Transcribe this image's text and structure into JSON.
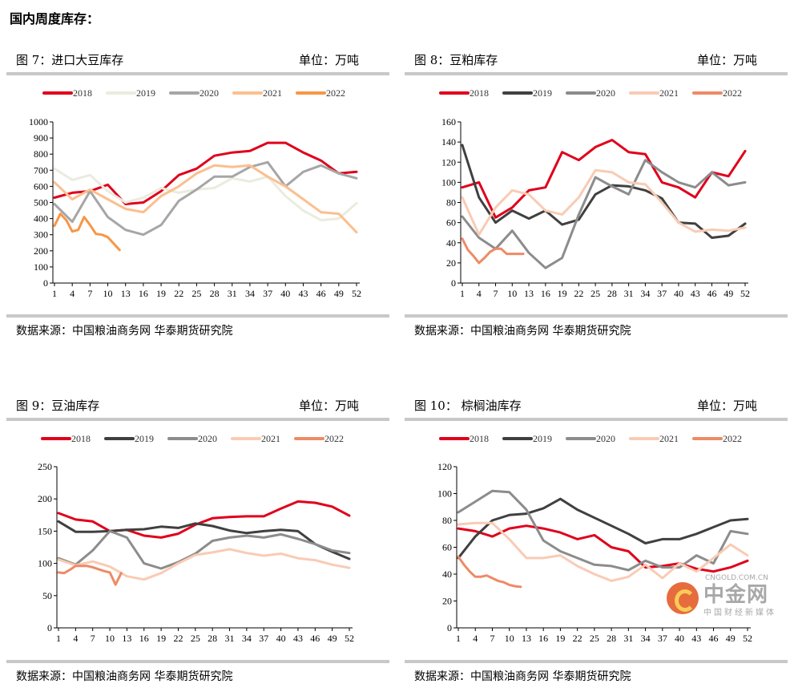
{
  "page_title": "国内周度库存：",
  "watermark": {
    "name": "中金网",
    "url": "CNGOLD.COM.CN",
    "sub": "中国财经新媒体"
  },
  "panels": [
    {
      "title": "图 7：进口大豆库存",
      "unit": "单位：万吨",
      "source": "数据来源：中国粮油商务网  华泰期货研究院"
    },
    {
      "title": "图 8：豆粕库存",
      "unit": "单位：万吨",
      "source": "数据来源：中国粮油商务网  华泰期货研究院"
    },
    {
      "title": "图 9：豆油库存",
      "unit": "单位：万吨",
      "source": "数据来源：中国粮油商务网  华泰期货研究院"
    },
    {
      "title": "图 10：    棕榈油库存",
      "unit": "单位：万吨",
      "source": "数据来源：中国粮油商务网  华泰期货研究院"
    }
  ],
  "chart_data": [
    {
      "type": "line",
      "title": "进口大豆库存",
      "unit": "万吨",
      "ylim": [
        0,
        1000
      ],
      "yticks": [
        0,
        100,
        200,
        300,
        400,
        500,
        600,
        700,
        800,
        900,
        1000
      ],
      "xlim": [
        1,
        52
      ],
      "xticks": [
        1,
        4,
        7,
        10,
        13,
        16,
        19,
        22,
        25,
        28,
        31,
        34,
        37,
        40,
        43,
        46,
        49,
        52
      ],
      "grid": false,
      "legend": "top",
      "series": [
        {
          "name": "2018",
          "color": "#e0001b",
          "x": [
            1,
            4,
            7,
            10,
            13,
            16,
            19,
            22,
            25,
            28,
            31,
            34,
            37,
            40,
            43,
            46,
            49,
            52
          ],
          "values": [
            530,
            560,
            570,
            610,
            490,
            500,
            570,
            670,
            710,
            790,
            810,
            820,
            870,
            870,
            810,
            760,
            680,
            690
          ]
        },
        {
          "name": "2019",
          "color": "#ebebdf",
          "x": [
            1,
            4,
            7,
            10,
            13,
            16,
            19,
            22,
            25,
            28,
            31,
            34,
            37,
            40,
            43,
            46,
            49,
            52
          ],
          "values": [
            710,
            640,
            670,
            570,
            500,
            530,
            590,
            560,
            580,
            590,
            650,
            630,
            660,
            540,
            450,
            390,
            400,
            495
          ]
        },
        {
          "name": "2020",
          "color": "#a6a6a6",
          "x": [
            1,
            4,
            7,
            10,
            13,
            16,
            19,
            22,
            25,
            28,
            31,
            34,
            37,
            40,
            43,
            46,
            49,
            52
          ],
          "values": [
            490,
            380,
            570,
            410,
            330,
            300,
            360,
            510,
            580,
            660,
            660,
            720,
            750,
            600,
            690,
            730,
            680,
            650
          ]
        },
        {
          "name": "2021",
          "color": "#fbbf8f",
          "x": [
            1,
            4,
            7,
            10,
            13,
            16,
            19,
            22,
            25,
            28,
            31,
            34,
            37,
            40,
            43,
            46,
            49,
            52
          ],
          "values": [
            625,
            520,
            580,
            520,
            460,
            440,
            540,
            600,
            680,
            730,
            720,
            730,
            660,
            600,
            520,
            440,
            430,
            315
          ]
        },
        {
          "name": "2022",
          "color": "#f79646",
          "x": [
            1,
            2,
            3,
            4,
            5,
            6,
            7,
            8,
            9,
            10,
            11,
            12
          ],
          "values": [
            355,
            430,
            390,
            320,
            330,
            410,
            360,
            305,
            300,
            285,
            245,
            205
          ]
        }
      ]
    },
    {
      "type": "line",
      "title": "豆粕库存",
      "unit": "万吨",
      "ylim": [
        0,
        160
      ],
      "yticks": [
        0,
        20,
        40,
        60,
        80,
        100,
        120,
        140,
        160
      ],
      "xlim": [
        1,
        52
      ],
      "xticks": [
        1,
        4,
        7,
        10,
        13,
        16,
        19,
        22,
        25,
        28,
        31,
        34,
        37,
        40,
        43,
        46,
        49,
        52
      ],
      "grid": false,
      "legend": "top",
      "series": [
        {
          "name": "2018",
          "color": "#e0001b",
          "x": [
            1,
            4,
            7,
            10,
            13,
            16,
            19,
            22,
            25,
            28,
            31,
            34,
            37,
            40,
            43,
            46,
            49,
            52
          ],
          "values": [
            95,
            100,
            65,
            75,
            92,
            95,
            130,
            122,
            135,
            142,
            130,
            128,
            100,
            95,
            85,
            110,
            106,
            131
          ]
        },
        {
          "name": "2019",
          "color": "#404040",
          "x": [
            1,
            4,
            7,
            10,
            13,
            16,
            19,
            22,
            25,
            28,
            31,
            34,
            37,
            40,
            43,
            46,
            49,
            52
          ],
          "values": [
            137,
            85,
            60,
            72,
            64,
            72,
            58,
            63,
            88,
            97,
            96,
            92,
            84,
            60,
            59,
            45,
            47,
            59
          ]
        },
        {
          "name": "2020",
          "color": "#8c8c8c",
          "x": [
            1,
            4,
            7,
            10,
            13,
            16,
            19,
            22,
            25,
            28,
            31,
            34,
            37,
            40,
            43,
            46,
            49,
            52
          ],
          "values": [
            66,
            45,
            34,
            52,
            30,
            15,
            25,
            68,
            105,
            96,
            88,
            122,
            110,
            100,
            95,
            110,
            97,
            100
          ]
        },
        {
          "name": "2021",
          "color": "#f9cbb4",
          "x": [
            1,
            4,
            7,
            10,
            13,
            16,
            19,
            22,
            25,
            28,
            31,
            34,
            37,
            40,
            43,
            46,
            49,
            52
          ],
          "values": [
            85,
            48,
            75,
            92,
            88,
            72,
            68,
            85,
            112,
            110,
            100,
            98,
            80,
            60,
            51,
            53,
            52,
            55
          ]
        },
        {
          "name": "2022",
          "color": "#ee8a66",
          "x": [
            1,
            2,
            3,
            4,
            5,
            6,
            7,
            8,
            9,
            10,
            11,
            12
          ],
          "values": [
            44,
            33,
            27,
            20,
            25,
            31,
            34,
            34,
            29,
            29,
            29,
            29
          ]
        }
      ]
    },
    {
      "type": "line",
      "title": "豆油库存",
      "unit": "万吨",
      "ylim": [
        0,
        250
      ],
      "yticks": [
        0,
        50,
        100,
        150,
        200,
        250
      ],
      "xlim": [
        1,
        52
      ],
      "xticks": [
        1,
        4,
        7,
        10,
        13,
        16,
        19,
        22,
        25,
        28,
        31,
        34,
        37,
        40,
        43,
        46,
        49,
        52
      ],
      "grid": false,
      "legend": "top",
      "series": [
        {
          "name": "2018",
          "color": "#e0001b",
          "x": [
            1,
            4,
            7,
            10,
            13,
            16,
            19,
            22,
            25,
            28,
            31,
            34,
            37,
            40,
            43,
            46,
            49,
            52
          ],
          "values": [
            178,
            168,
            165,
            150,
            152,
            143,
            140,
            146,
            160,
            170,
            172,
            173,
            173,
            185,
            196,
            194,
            188,
            174
          ]
        },
        {
          "name": "2019",
          "color": "#404040",
          "x": [
            1,
            4,
            7,
            10,
            13,
            16,
            19,
            22,
            25,
            28,
            31,
            34,
            37,
            40,
            43,
            46,
            49,
            52
          ],
          "values": [
            165,
            149,
            149,
            150,
            152,
            153,
            157,
            155,
            162,
            158,
            151,
            147,
            150,
            152,
            150,
            130,
            118,
            107
          ]
        },
        {
          "name": "2020",
          "color": "#8c8c8c",
          "x": [
            1,
            4,
            7,
            10,
            13,
            16,
            19,
            22,
            25,
            28,
            31,
            34,
            37,
            40,
            43,
            46,
            49,
            52
          ],
          "values": [
            108,
            98,
            120,
            150,
            140,
            100,
            92,
            102,
            115,
            135,
            140,
            143,
            140,
            145,
            138,
            130,
            120,
            116
          ]
        },
        {
          "name": "2021",
          "color": "#f9cbb4",
          "x": [
            1,
            4,
            7,
            10,
            13,
            16,
            19,
            22,
            25,
            28,
            31,
            34,
            37,
            40,
            43,
            46,
            49,
            52
          ],
          "values": [
            106,
            97,
            103,
            95,
            80,
            75,
            85,
            100,
            113,
            117,
            122,
            116,
            112,
            115,
            108,
            105,
            98,
            93
          ]
        },
        {
          "name": "2022",
          "color": "#ee8a66",
          "x": [
            1,
            2,
            3,
            4,
            5,
            6,
            7,
            8,
            9,
            10,
            11,
            12
          ],
          "values": [
            86,
            85,
            90,
            96,
            96,
            96,
            94,
            91,
            88,
            86,
            67,
            85
          ]
        }
      ]
    },
    {
      "type": "line",
      "title": "棕榈油库存",
      "unit": "万吨",
      "ylim": [
        0,
        120
      ],
      "yticks": [
        0,
        20,
        40,
        60,
        80,
        100,
        120
      ],
      "xlim": [
        1,
        52
      ],
      "xticks": [
        1,
        4,
        7,
        10,
        13,
        16,
        19,
        22,
        25,
        28,
        31,
        34,
        37,
        40,
        43,
        46,
        49,
        52
      ],
      "grid": false,
      "legend": "top",
      "series": [
        {
          "name": "2018",
          "color": "#e0001b",
          "x": [
            1,
            4,
            7,
            10,
            13,
            16,
            19,
            22,
            25,
            28,
            31,
            34,
            37,
            40,
            43,
            46,
            49,
            52
          ],
          "values": [
            74,
            72,
            68,
            74,
            76,
            74,
            71,
            66,
            69,
            60,
            57,
            45,
            46,
            48,
            44,
            42,
            45,
            50
          ]
        },
        {
          "name": "2019",
          "color": "#404040",
          "x": [
            1,
            4,
            7,
            10,
            13,
            16,
            19,
            22,
            25,
            28,
            31,
            34,
            37,
            40,
            43,
            46,
            49,
            52
          ],
          "values": [
            52,
            68,
            80,
            84,
            85,
            89,
            96,
            88,
            82,
            76,
            70,
            63,
            66,
            66,
            70,
            75,
            80,
            81
          ]
        },
        {
          "name": "2020",
          "color": "#8c8c8c",
          "x": [
            1,
            4,
            7,
            10,
            13,
            16,
            19,
            22,
            25,
            28,
            31,
            34,
            37,
            40,
            43,
            46,
            49,
            52
          ],
          "values": [
            86,
            94,
            102,
            101,
            88,
            65,
            57,
            52,
            47,
            46,
            43,
            50,
            45,
            45,
            54,
            48,
            72,
            70
          ]
        },
        {
          "name": "2021",
          "color": "#f9cbb4",
          "x": [
            1,
            4,
            7,
            10,
            13,
            16,
            19,
            22,
            25,
            28,
            31,
            34,
            37,
            40,
            43,
            46,
            49,
            52
          ],
          "values": [
            77,
            78,
            78,
            66,
            52,
            52,
            54,
            46,
            40,
            35,
            38,
            47,
            37,
            48,
            42,
            52,
            62,
            54
          ]
        },
        {
          "name": "2022",
          "color": "#ee8a66",
          "x": [
            1,
            2,
            3,
            4,
            5,
            6,
            7,
            8,
            9,
            10,
            11,
            12
          ],
          "values": [
            53,
            47,
            42,
            38,
            38,
            39,
            37,
            35,
            34,
            32,
            31,
            30.5
          ]
        }
      ]
    }
  ]
}
